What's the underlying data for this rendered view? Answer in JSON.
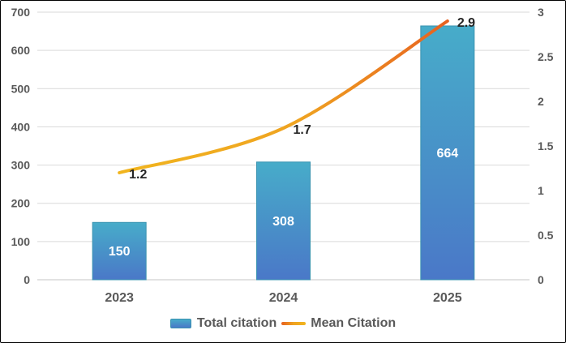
{
  "chart_data": {
    "type": "bar",
    "subtype": "combo-bar-line",
    "title": "",
    "categories": [
      "2023",
      "2024",
      "2025"
    ],
    "series": [
      {
        "name": "Total citation",
        "type": "bar",
        "axis": "left",
        "values": [
          150,
          308,
          664
        ],
        "data_labels": [
          "150",
          "308",
          "664"
        ],
        "label_position": "inside-center"
      },
      {
        "name": "Mean Citation",
        "type": "line",
        "axis": "right",
        "values": [
          1.2,
          1.7,
          2.9
        ],
        "data_labels": [
          "1.2",
          "1.7",
          "2.9"
        ],
        "label_position": "right-of-point"
      }
    ],
    "left_axis": {
      "min": 0,
      "max": 700,
      "step": 100,
      "ticks": [
        "0",
        "100",
        "200",
        "300",
        "400",
        "500",
        "600",
        "700"
      ]
    },
    "right_axis": {
      "min": 0,
      "max": 3,
      "step": 0.5,
      "ticks": [
        "0",
        "0.5",
        "1",
        "1.5",
        "2",
        "2.5",
        "3"
      ]
    },
    "grid": true,
    "legend_position": "bottom"
  },
  "legend": {
    "items": [
      {
        "label": "Total citation",
        "swatch": "bar"
      },
      {
        "label": "Mean Citation",
        "swatch": "line"
      }
    ]
  },
  "colors": {
    "background": "#FFFFFF",
    "frame_border": "#000000",
    "grid": "#D9D9D9",
    "grid_zero": "#C6C6C6",
    "axis_text": "#595959",
    "data_label": "#262626",
    "bar_label": "#FFFFFF",
    "bar_top": "#47ACC9",
    "bar_bottom": "#4A78C8",
    "bar_border": "#3A93B0",
    "line_start": "#F1B51E",
    "line_mid": "#EFA321",
    "line_end": "#E7611F"
  }
}
